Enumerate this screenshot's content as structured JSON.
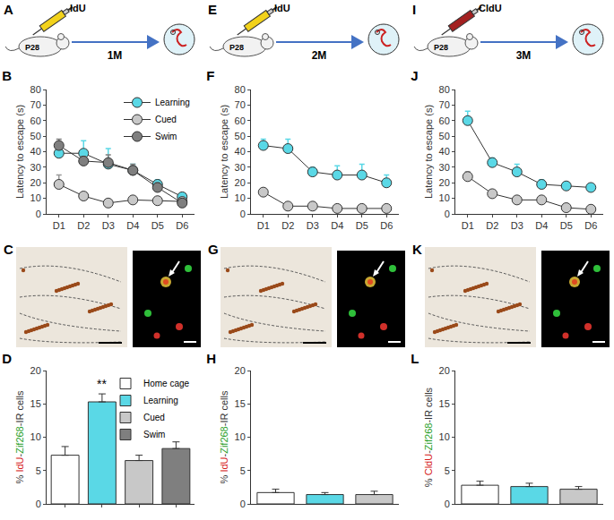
{
  "chart_data": [
    {
      "type": "line",
      "title": "B",
      "categories": [
        "D1",
        "D2",
        "D3",
        "D4",
        "D5",
        "D6"
      ],
      "y_label": "Latency to escape (s)",
      "ylim": [
        0,
        80
      ],
      "yticks": [
        0,
        10,
        20,
        30,
        40,
        50,
        60,
        70,
        80
      ],
      "legend": "upper right",
      "series": [
        {
          "name": "Learning",
          "color": "#5ad8e6",
          "values": [
            39,
            39,
            32,
            28,
            19,
            11
          ],
          "errors": [
            6,
            8,
            10,
            4,
            3,
            2
          ]
        },
        {
          "name": "Cued",
          "color": "#c8c8c8",
          "values": [
            19,
            11.5,
            7,
            9,
            8.5,
            8
          ],
          "errors": [
            6,
            2,
            2,
            2,
            2,
            1
          ]
        },
        {
          "name": "Swim",
          "color": "#7f7f7f",
          "values": [
            44,
            34,
            33,
            28,
            17,
            7
          ],
          "errors": [
            4,
            3,
            5,
            4,
            3,
            3
          ]
        }
      ]
    },
    {
      "type": "bar",
      "title": "D",
      "categories": [
        "Home cage",
        "Learning",
        "Cued",
        "Swim"
      ],
      "values": [
        7.3,
        15.3,
        6.5,
        8.3
      ],
      "errors": [
        1.3,
        1.2,
        0.8,
        1.0
      ],
      "colors": [
        "#ffffff",
        "#5ad8e6",
        "#c8c8c8",
        "#7f7f7f"
      ],
      "y_label": "% IdU-Zif268-IR cells",
      "ylim": [
        0,
        20
      ],
      "yticks": [
        0,
        5,
        10,
        15,
        20
      ],
      "tick_labels": "y",
      "legend": "upper right",
      "annotations": [
        {
          "text": "**",
          "category": "Learning"
        }
      ]
    },
    {
      "type": "line",
      "title": "F",
      "categories": [
        "D1",
        "D2",
        "D3",
        "D4",
        "D5",
        "D6"
      ],
      "y_label": "Latency to escape (s)",
      "ylim": [
        0,
        80
      ],
      "yticks": [
        0,
        10,
        20,
        30,
        40,
        50,
        60,
        70,
        80
      ],
      "series": [
        {
          "name": "Learning",
          "color": "#5ad8e6",
          "values": [
            44,
            42,
            27,
            25,
            25,
            20
          ],
          "errors": [
            4,
            6,
            3,
            6,
            7,
            5
          ]
        },
        {
          "name": "Cued",
          "color": "#c8c8c8",
          "values": [
            14,
            5,
            5,
            3.5,
            3.5,
            3.5
          ],
          "errors": [
            2,
            1,
            2,
            1,
            1,
            1
          ]
        }
      ]
    },
    {
      "type": "bar",
      "title": "H",
      "categories": [
        null,
        null,
        null
      ],
      "values": [
        1.7,
        1.4,
        1.4
      ],
      "errors": [
        0.5,
        0.3,
        0.5
      ],
      "colors": [
        "#ffffff",
        "#5ad8e6",
        "#c8c8c8"
      ],
      "y_label": "% IdU-Zif268-IR cells",
      "ylim": [
        0,
        20
      ],
      "yticks": [
        0,
        5,
        10,
        15,
        20
      ],
      "tick_labels": "y"
    },
    {
      "type": "line",
      "title": "J",
      "categories": [
        "D1",
        "D2",
        "D3",
        "D4",
        "D5",
        "D6"
      ],
      "y_label": "Latency to escape (s)",
      "ylim": [
        0,
        80
      ],
      "yticks": [
        0,
        10,
        20,
        30,
        40,
        50,
        60,
        70,
        80
      ],
      "series": [
        {
          "name": "Learning",
          "color": "#5ad8e6",
          "values": [
            60,
            33,
            27,
            19,
            18,
            17
          ],
          "errors": [
            6,
            3,
            5,
            3,
            2,
            2
          ]
        },
        {
          "name": "Cued",
          "color": "#c8c8c8",
          "values": [
            24,
            13,
            9,
            9,
            4,
            3
          ],
          "errors": [
            3,
            2,
            2,
            2,
            2,
            1
          ]
        }
      ]
    },
    {
      "type": "bar",
      "title": "L",
      "categories": [
        null,
        null,
        null
      ],
      "values": [
        2.8,
        2.6,
        2.2
      ],
      "errors": [
        0.6,
        0.5,
        0.4
      ],
      "colors": [
        "#ffffff",
        "#5ad8e6",
        "#c8c8c8"
      ],
      "y_label": "% CldU-Zif268-IR cells",
      "ylim": [
        0,
        20
      ],
      "yticks": [
        0,
        5,
        10,
        15,
        20
      ],
      "tick_labels": "y"
    }
  ],
  "schematics": [
    {
      "title": "A",
      "age": "P28",
      "label": "IdU",
      "duration": "1M",
      "color": "#f2d21b"
    },
    {
      "title": "E",
      "age": "P28",
      "label": "IdU",
      "duration": "2M",
      "color": "#f2d21b"
    },
    {
      "title": "I",
      "age": "P28",
      "label": "CldU",
      "duration": "3M",
      "color": "#a32020"
    }
  ],
  "micrographs": [
    {
      "title": "C"
    },
    {
      "title": "G"
    },
    {
      "title": "K"
    }
  ]
}
